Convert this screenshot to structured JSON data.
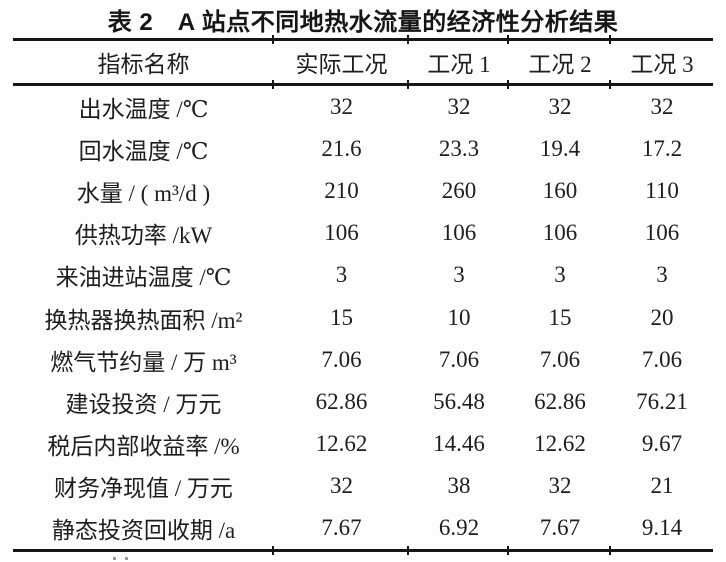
{
  "page": {
    "background_color": "#fdfdfd",
    "text_color": "#1e1e1e",
    "rule_color": "#161616"
  },
  "title": "表 2　A 站点不同地热水流量的经济性分析结果",
  "chart_data": {
    "type": "table",
    "title": "表 2　A 站点不同地热水流量的经济性分析结果",
    "columns": [
      "指标名称",
      "实际工况",
      "工况 1",
      "工况 2",
      "工况 3"
    ],
    "rows": [
      {
        "label": "出水温度 /℃",
        "values": [
          "32",
          "32",
          "32",
          "32"
        ]
      },
      {
        "label": "回水温度 /℃",
        "values": [
          "21.6",
          "23.3",
          "19.4",
          "17.2"
        ]
      },
      {
        "label": "水量 / ( m³/d )",
        "values": [
          "210",
          "260",
          "160",
          "110"
        ]
      },
      {
        "label": "供热功率 /kW",
        "values": [
          "106",
          "106",
          "106",
          "106"
        ]
      },
      {
        "label": "来油进站温度 /℃",
        "values": [
          "3",
          "3",
          "3",
          "3"
        ]
      },
      {
        "label": "换热器换热面积 /m²",
        "values": [
          "15",
          "10",
          "15",
          "20"
        ]
      },
      {
        "label": "燃气节约量 / 万 m³",
        "values": [
          "7.06",
          "7.06",
          "7.06",
          "7.06"
        ]
      },
      {
        "label": "建设投资 / 万元",
        "values": [
          "62.86",
          "56.48",
          "62.86",
          "76.21"
        ]
      },
      {
        "label": "税后内部收益率 /%",
        "values": [
          "12.62",
          "14.46",
          "12.62",
          "9.67"
        ]
      },
      {
        "label": "财务净现值 / 万元",
        "values": [
          "32",
          "38",
          "32",
          "21"
        ]
      },
      {
        "label": "静态投资回收期 /a",
        "values": [
          "7.67",
          "6.92",
          "7.67",
          "9.14"
        ]
      }
    ]
  }
}
